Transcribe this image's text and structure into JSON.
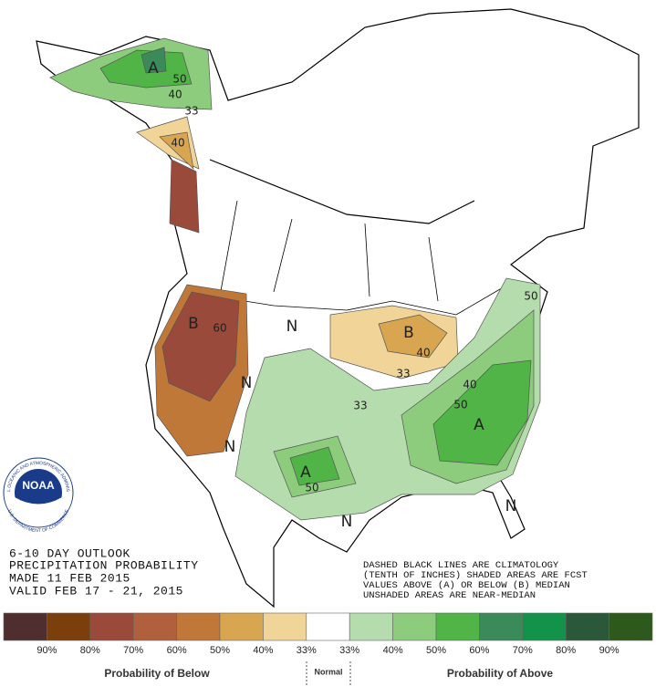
{
  "title_block": {
    "lines": [
      "6-10 DAY OUTLOOK",
      "PRECIPITATION PROBABILITY",
      "MADE  11 FEB 2015",
      "VALID  FEB 17 - 21, 2015"
    ]
  },
  "notes": [
    "DASHED BLACK LINES ARE CLIMATOLOGY",
    "(TENTH OF INCHES) SHADED AREAS ARE FCST",
    "VALUES ABOVE (A) OR BELOW (B) MEDIAN",
    "UNSHADED AREAS ARE NEAR-MEDIAN"
  ],
  "logo": {
    "name": "NOAA",
    "ring_top": "NATIONAL OCEANIC AND ATMOSPHERIC ADMINISTRATION",
    "ring_bottom": "U.S. DEPARTMENT OF COMMERCE"
  },
  "map_labels": [
    "A",
    "50",
    "40",
    "33",
    "40",
    "B",
    "60",
    "N",
    "N",
    "B",
    "40",
    "33",
    "40",
    "33",
    "50",
    "A",
    "N",
    "A",
    "50",
    "N",
    "N",
    "50"
  ],
  "legend": {
    "colors": [
      "#4e2e2e",
      "#7a3f0a",
      "#9a4a3a",
      "#b0603c",
      "#c07838",
      "#d8a550",
      "#f0d498",
      "#ffffff",
      "#b4dcac",
      "#8ccc7c",
      "#50b447",
      "#3a8a5a",
      "#13934a",
      "#2a5838",
      "#2d5a1c"
    ],
    "labels": [
      "90%",
      "80%",
      "70%",
      "60%",
      "50%",
      "40%",
      "33%",
      "33%",
      "40%",
      "50%",
      "60%",
      "70%",
      "80%",
      "90%"
    ],
    "below": "Probability of Below",
    "normal": "Normal",
    "above": "Probability of Above"
  }
}
